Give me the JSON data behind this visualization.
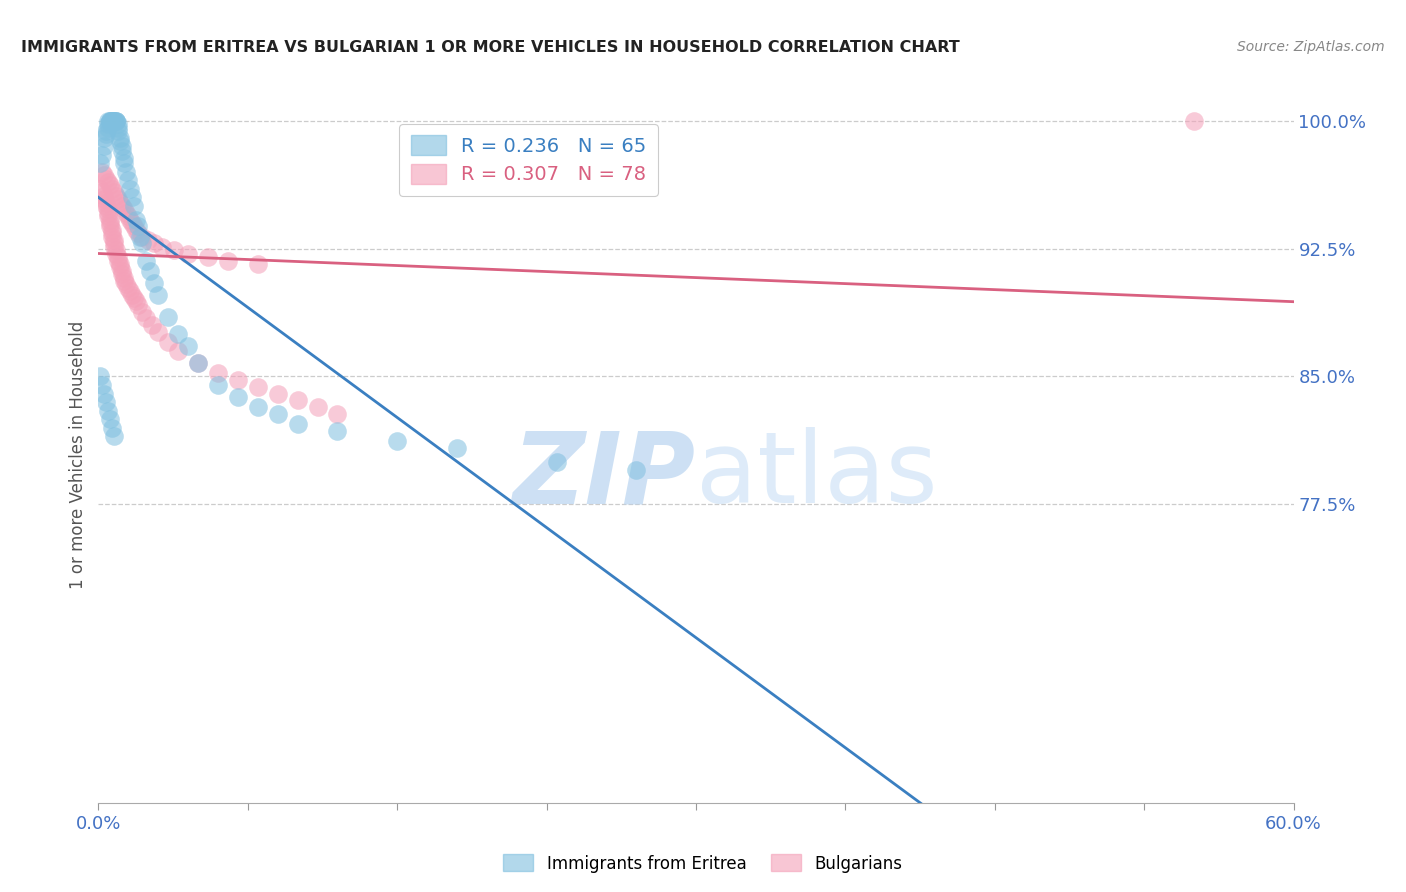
{
  "title": "IMMIGRANTS FROM ERITREA VS BULGARIAN 1 OR MORE VEHICLES IN HOUSEHOLD CORRELATION CHART",
  "source": "Source: ZipAtlas.com",
  "ylabel": "1 or more Vehicles in Household",
  "xlim": [
    0.0,
    0.6
  ],
  "ylim": [
    0.6,
    1.008
  ],
  "xtick_positions": [
    0.0,
    0.075,
    0.15,
    0.225,
    0.3,
    0.375,
    0.45,
    0.525,
    0.6
  ],
  "ytick_positions": [
    0.775,
    0.85,
    0.925,
    1.0
  ],
  "ytick_labels": [
    "77.5%",
    "85.0%",
    "92.5%",
    "100.0%"
  ],
  "watermark_zip": "ZIP",
  "watermark_atlas": "atlas",
  "legend_r1": "R = 0.236",
  "legend_n1": "N = 65",
  "legend_r2": "R = 0.307",
  "legend_n2": "N = 78",
  "color_blue": "#7fbfdf",
  "color_pink": "#f4a0b8",
  "trendline_blue": "#3a7fc1",
  "trendline_pink": "#d96080",
  "blue_x": [
    0.001,
    0.002,
    0.003,
    0.003,
    0.004,
    0.004,
    0.005,
    0.005,
    0.005,
    0.006,
    0.006,
    0.006,
    0.007,
    0.007,
    0.007,
    0.008,
    0.008,
    0.008,
    0.009,
    0.009,
    0.009,
    0.01,
    0.01,
    0.01,
    0.011,
    0.011,
    0.012,
    0.012,
    0.013,
    0.013,
    0.014,
    0.015,
    0.016,
    0.017,
    0.018,
    0.019,
    0.02,
    0.021,
    0.022,
    0.024,
    0.026,
    0.028,
    0.03,
    0.035,
    0.04,
    0.045,
    0.05,
    0.06,
    0.07,
    0.08,
    0.09,
    0.1,
    0.12,
    0.15,
    0.18,
    0.23,
    0.27,
    0.001,
    0.002,
    0.003,
    0.004,
    0.005,
    0.006,
    0.007,
    0.008
  ],
  "blue_y": [
    0.975,
    0.98,
    0.985,
    0.99,
    0.992,
    0.994,
    0.996,
    0.998,
    1.0,
    1.0,
    1.0,
    1.0,
    1.0,
    1.0,
    1.0,
    1.0,
    1.0,
    1.0,
    1.0,
    1.0,
    1.0,
    0.998,
    0.996,
    0.994,
    0.99,
    0.988,
    0.985,
    0.982,
    0.978,
    0.975,
    0.97,
    0.965,
    0.96,
    0.955,
    0.95,
    0.942,
    0.938,
    0.932,
    0.928,
    0.918,
    0.912,
    0.905,
    0.898,
    0.885,
    0.875,
    0.868,
    0.858,
    0.845,
    0.838,
    0.832,
    0.828,
    0.822,
    0.818,
    0.812,
    0.808,
    0.8,
    0.795,
    0.85,
    0.845,
    0.84,
    0.835,
    0.83,
    0.825,
    0.82,
    0.815
  ],
  "pink_x": [
    0.001,
    0.002,
    0.003,
    0.003,
    0.004,
    0.004,
    0.005,
    0.005,
    0.005,
    0.006,
    0.006,
    0.006,
    0.007,
    0.007,
    0.007,
    0.008,
    0.008,
    0.008,
    0.009,
    0.009,
    0.01,
    0.01,
    0.011,
    0.011,
    0.012,
    0.012,
    0.013,
    0.013,
    0.014,
    0.015,
    0.016,
    0.017,
    0.018,
    0.019,
    0.02,
    0.022,
    0.024,
    0.027,
    0.03,
    0.035,
    0.04,
    0.05,
    0.06,
    0.07,
    0.08,
    0.09,
    0.1,
    0.11,
    0.12,
    0.55,
    0.002,
    0.003,
    0.004,
    0.005,
    0.006,
    0.007,
    0.008,
    0.009,
    0.01,
    0.011,
    0.012,
    0.013,
    0.014,
    0.015,
    0.016,
    0.017,
    0.018,
    0.019,
    0.02,
    0.022,
    0.025,
    0.028,
    0.032,
    0.038,
    0.045,
    0.055,
    0.065,
    0.08
  ],
  "pink_y": [
    0.96,
    0.958,
    0.956,
    0.954,
    0.952,
    0.95,
    0.948,
    0.946,
    0.944,
    0.942,
    0.94,
    0.938,
    0.936,
    0.934,
    0.932,
    0.93,
    0.928,
    0.926,
    0.924,
    0.922,
    0.92,
    0.918,
    0.916,
    0.914,
    0.912,
    0.91,
    0.908,
    0.906,
    0.904,
    0.902,
    0.9,
    0.898,
    0.896,
    0.894,
    0.892,
    0.888,
    0.884,
    0.88,
    0.876,
    0.87,
    0.865,
    0.858,
    0.852,
    0.848,
    0.844,
    0.84,
    0.836,
    0.832,
    0.828,
    1.0,
    0.97,
    0.968,
    0.966,
    0.964,
    0.962,
    0.96,
    0.958,
    0.956,
    0.954,
    0.952,
    0.95,
    0.948,
    0.946,
    0.944,
    0.942,
    0.94,
    0.938,
    0.936,
    0.934,
    0.932,
    0.93,
    0.928,
    0.926,
    0.924,
    0.922,
    0.92,
    0.918,
    0.916
  ]
}
